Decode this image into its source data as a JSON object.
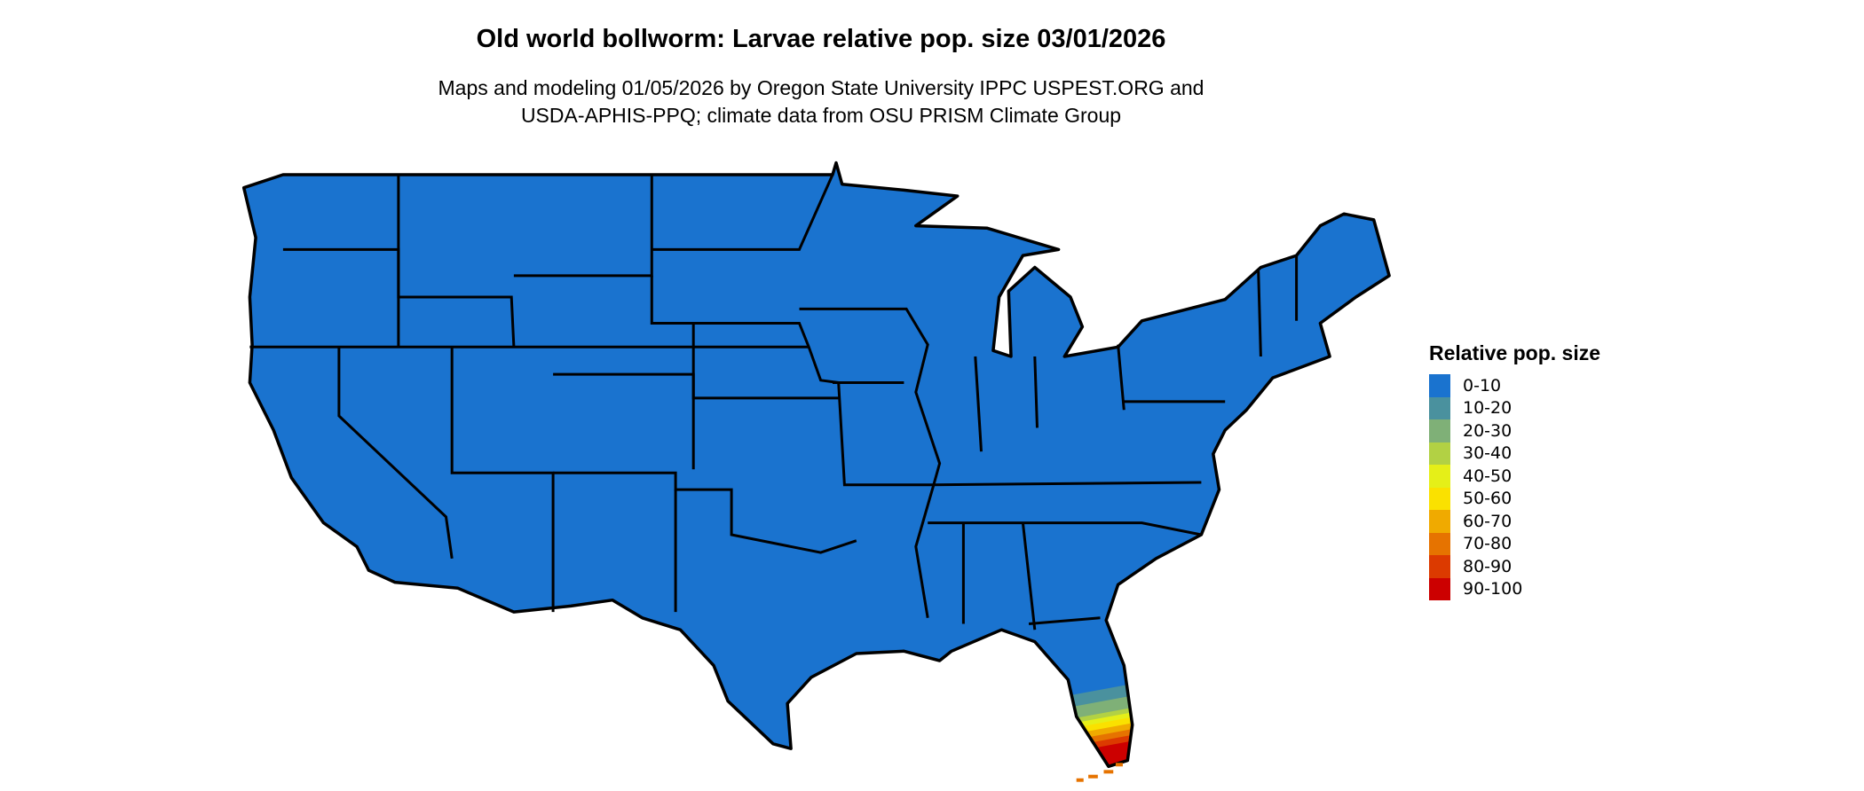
{
  "title": "Old world bollworm: Larvae relative pop. size 03/01/2026",
  "subtitle_lines": [
    "Maps and modeling 01/05/2026 by Oregon State University IPPC USPEST.ORG and",
    "USDA-APHIS-PPQ; climate data from OSU PRISM Climate Group"
  ],
  "legend": {
    "title": "Relative pop. size",
    "items": [
      {
        "label": "0-10",
        "color": "#1a73cf"
      },
      {
        "label": "10-20",
        "color": "#4a919e"
      },
      {
        "label": "20-30",
        "color": "#7fb077"
      },
      {
        "label": "30-40",
        "color": "#b2d144"
      },
      {
        "label": "40-50",
        "color": "#e5ef18"
      },
      {
        "label": "50-60",
        "color": "#fae100"
      },
      {
        "label": "60-70",
        "color": "#f0aa00"
      },
      {
        "label": "70-80",
        "color": "#e67300"
      },
      {
        "label": "80-90",
        "color": "#dc3a00"
      },
      {
        "label": "90-100",
        "color": "#cc0000"
      }
    ]
  },
  "map": {
    "region": "Contiguous United States",
    "dominant_class": "0-10",
    "hotspot": "South Florida"
  }
}
